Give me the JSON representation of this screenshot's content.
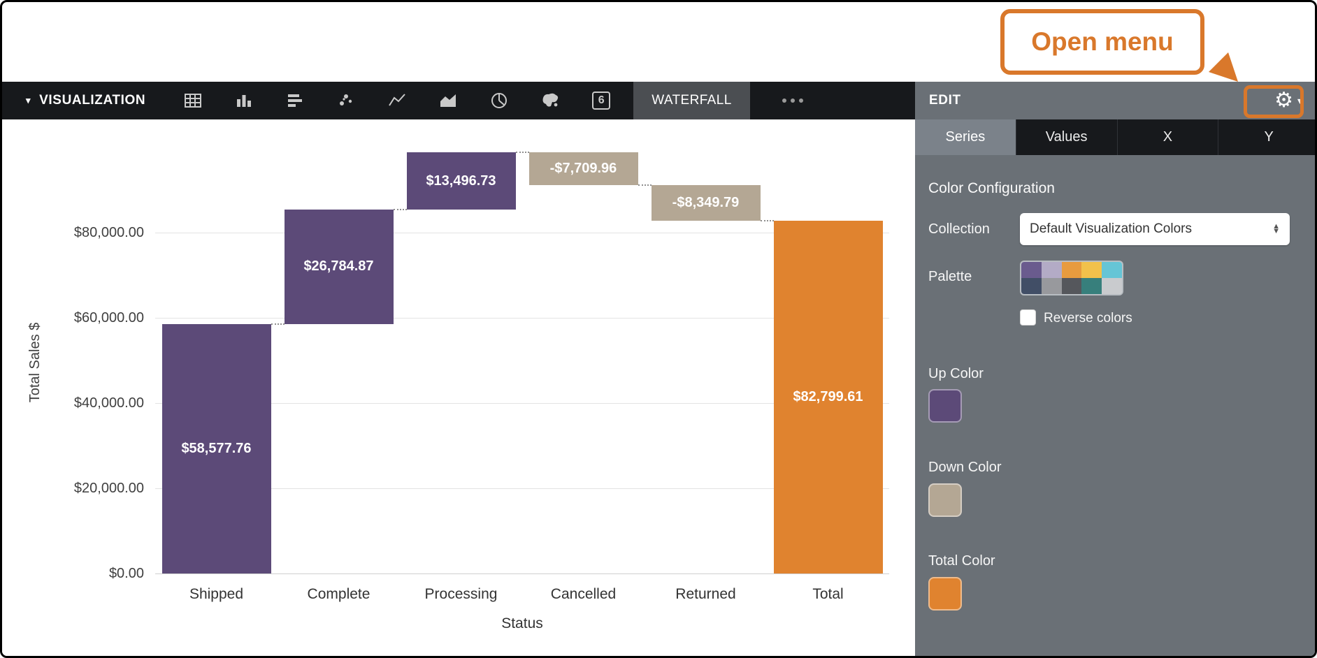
{
  "annotation": {
    "callout_label": "Open menu",
    "accent_color": "#D9782B"
  },
  "toolbar": {
    "title": "VISUALIZATION",
    "icon_names": [
      "table-icon",
      "column-chart-icon",
      "bar-chart-icon",
      "scatter-icon",
      "line-chart-icon",
      "area-chart-icon",
      "pie-chart-icon",
      "map-icon",
      "single-value-icon"
    ],
    "single_value_glyph": "6",
    "active_tab": "WATERFALL"
  },
  "edit_panel": {
    "title": "EDIT",
    "tabs": [
      {
        "label": "Series",
        "selected": true
      },
      {
        "label": "Values",
        "selected": false
      },
      {
        "label": "X",
        "selected": false
      },
      {
        "label": "Y",
        "selected": false
      }
    ],
    "section_title": "Color Configuration",
    "collection_label": "Collection",
    "collection_value": "Default Visualization Colors",
    "palette_label": "Palette",
    "palette_top_row": [
      "#6A5B8E",
      "#B3ABC6",
      "#E89B3F",
      "#F2C14B",
      "#66C5D6"
    ],
    "palette_bottom_row": [
      "#414E66",
      "#98999D",
      "#55575C",
      "#377F7C",
      "#C9CBCE"
    ],
    "reverse_label": "Reverse colors",
    "reverse_checked": false,
    "up_color_label": "Up Color",
    "up_color": "#5C4A78",
    "down_color_label": "Down Color",
    "down_color": "#B4A794",
    "total_color_label": "Total Color",
    "total_color": "#E0832F"
  },
  "chart_data": {
    "type": "waterfall",
    "title": "",
    "xlabel": "Status",
    "ylabel": "Total Sales $",
    "ylim": [
      0,
      101000
    ],
    "yticks": [
      0,
      20000,
      40000,
      60000,
      80000
    ],
    "ytick_labels": [
      "$0.00",
      "$20,000.00",
      "$40,000.00",
      "$60,000.00",
      "$80,000.00"
    ],
    "categories": [
      "Shipped",
      "Complete",
      "Processing",
      "Cancelled",
      "Returned",
      "Total"
    ],
    "bars": [
      {
        "category": "Shipped",
        "value": 58577.76,
        "label": "$58,577.76",
        "kind": "up",
        "start": 0,
        "end": 58577.76
      },
      {
        "category": "Complete",
        "value": 26784.87,
        "label": "$26,784.87",
        "kind": "up",
        "start": 58577.76,
        "end": 85362.63
      },
      {
        "category": "Processing",
        "value": 13496.73,
        "label": "$13,496.73",
        "kind": "up",
        "start": 85362.63,
        "end": 98859.36
      },
      {
        "category": "Cancelled",
        "value": -7709.96,
        "label": "-$7,709.96",
        "kind": "down",
        "start": 98859.36,
        "end": 91149.4
      },
      {
        "category": "Returned",
        "value": -8349.79,
        "label": "-$8,349.79",
        "kind": "down",
        "start": 91149.4,
        "end": 82799.61
      },
      {
        "category": "Total",
        "value": 82799.61,
        "label": "$82,799.61",
        "kind": "total",
        "start": 0,
        "end": 82799.61
      }
    ],
    "colors": {
      "up": "#5C4A78",
      "down": "#B4A794",
      "total": "#E0832F"
    },
    "grid": true,
    "legend": false
  }
}
